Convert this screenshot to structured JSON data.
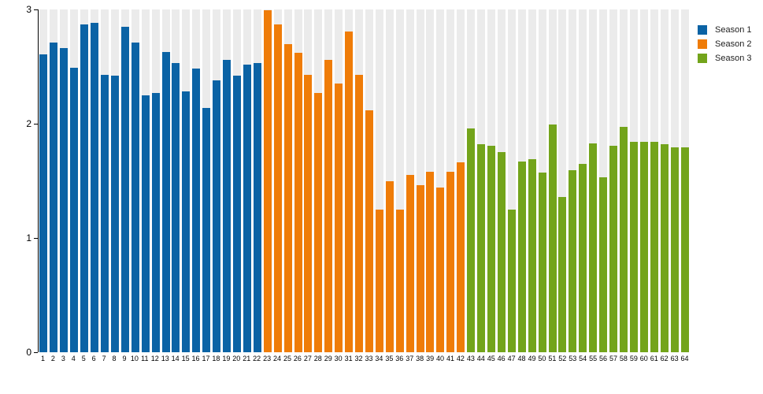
{
  "colors": {
    "season1": "#0b63a5",
    "season2": "#ef7c08",
    "season3": "#73a41b",
    "track": "#ebebeb",
    "axis": "#000000",
    "legend_text": "#222222"
  },
  "legend": {
    "items": [
      {
        "label": "Season 1",
        "color": "#0b63a5"
      },
      {
        "label": "Season 2",
        "color": "#ef7c08"
      },
      {
        "label": "Season 3",
        "color": "#73a41b"
      }
    ]
  },
  "chart_data": {
    "type": "bar",
    "title": "",
    "xlabel": "",
    "ylabel": "",
    "ylim": [
      0,
      3
    ],
    "yticks": [
      "0",
      "1",
      "2",
      "3"
    ],
    "grid": false,
    "legend_position": "top-right",
    "track_background": true,
    "categories": [
      "1",
      "2",
      "3",
      "4",
      "5",
      "6",
      "7",
      "8",
      "9",
      "10",
      "11",
      "12",
      "13",
      "14",
      "15",
      "16",
      "17",
      "18",
      "19",
      "20",
      "21",
      "22",
      "23",
      "24",
      "25",
      "26",
      "27",
      "28",
      "29",
      "30",
      "31",
      "32",
      "33",
      "34",
      "35",
      "36",
      "37",
      "38",
      "39",
      "40",
      "41",
      "42",
      "43",
      "44",
      "45",
      "46",
      "47",
      "48",
      "49",
      "50",
      "51",
      "52",
      "53",
      "54",
      "55",
      "56",
      "57",
      "58",
      "59",
      "60",
      "61",
      "62",
      "63",
      "64"
    ],
    "series": [
      {
        "name": "Season 1",
        "color": "#0b63a5",
        "start_category": "1",
        "values": [
          2.61,
          2.71,
          2.66,
          2.49,
          2.87,
          2.88,
          2.43,
          2.42,
          2.85,
          2.71,
          2.25,
          2.27,
          2.63,
          2.53,
          2.28,
          2.48,
          2.14,
          2.38,
          2.56,
          2.42,
          2.52,
          2.53
        ]
      },
      {
        "name": "Season 2",
        "color": "#ef7c08",
        "start_category": "23",
        "values": [
          2.99,
          2.87,
          2.7,
          2.62,
          2.43,
          2.27,
          2.56,
          2.35,
          2.81,
          2.43,
          2.12,
          1.25,
          1.5,
          1.25,
          1.55,
          1.46,
          1.58,
          1.44,
          1.58,
          1.66
        ]
      },
      {
        "name": "Season 3",
        "color": "#73a41b",
        "start_category": "43",
        "values": [
          1.96,
          1.82,
          1.81,
          1.75,
          1.25,
          1.67,
          1.69,
          1.57,
          1.99,
          1.36,
          1.59,
          1.65,
          1.83,
          1.53,
          1.81,
          1.97,
          1.84,
          1.84,
          1.84,
          1.82,
          1.79,
          1.79
        ]
      }
    ]
  }
}
